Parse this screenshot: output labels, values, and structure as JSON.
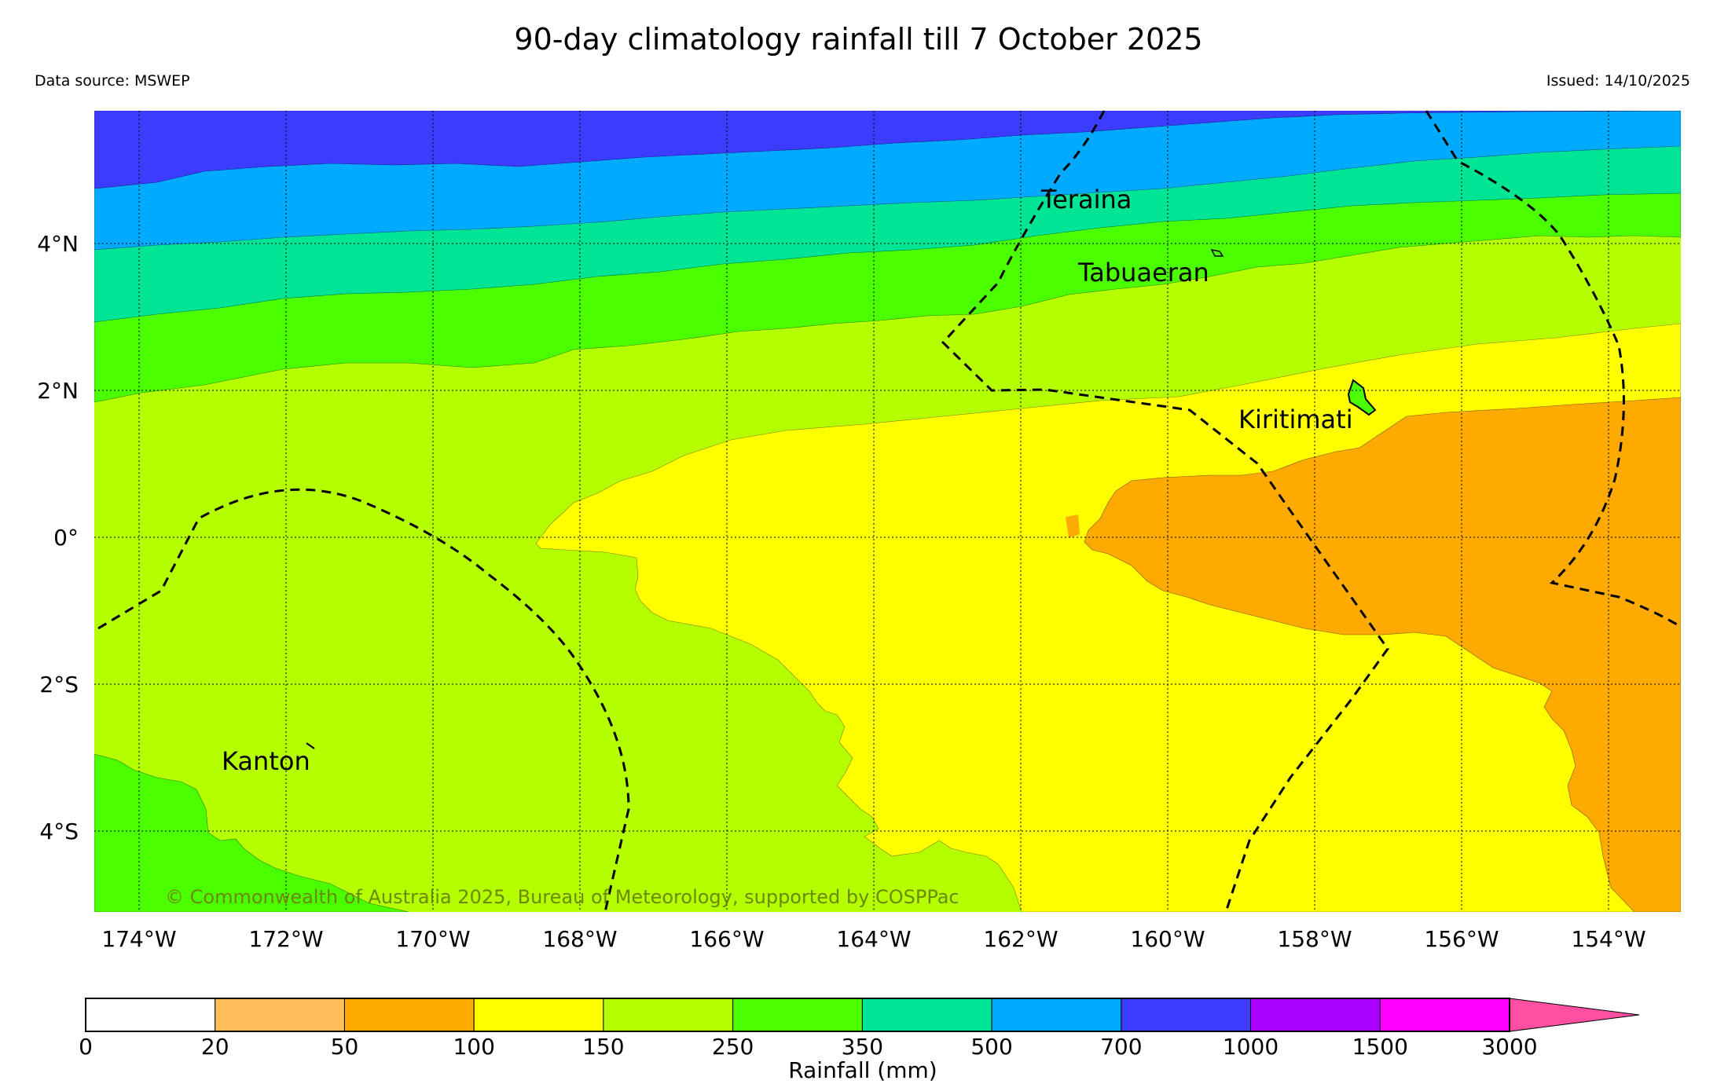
{
  "title": "90-day climatology rainfall till 7 October 2025",
  "data_source": "Data source: MSWEP",
  "issued": "Issued: 14/10/2025",
  "copyright": "© Commonwealth of Australia 2025, Bureau of Meteorology, supported by COSPPac",
  "map": {
    "lon_ticks": [
      "174°W",
      "172°W",
      "170°W",
      "168°W",
      "166°W",
      "164°W",
      "162°W",
      "160°W",
      "158°W",
      "156°W",
      "154°W"
    ],
    "lat_ticks": [
      "4°N",
      "2°N",
      "0°",
      "2°S",
      "4°S"
    ],
    "islands": [
      "Teraina",
      "Tabuaeran",
      "Kiritimati",
      "Kanton"
    ],
    "extent": {
      "lon_min": -174.6,
      "lon_max": -152.9,
      "lat_min": -5.1,
      "lat_max": 5.8
    }
  },
  "colorbar": {
    "label": "Rainfall (mm)",
    "ticks": [
      "0",
      "20",
      "50",
      "100",
      "150",
      "250",
      "350",
      "500",
      "700",
      "1000",
      "1500",
      "3000"
    ],
    "colors": [
      "#ffffff",
      "#ffbe5a",
      "#ffaa00",
      "#ffff00",
      "#b4ff00",
      "#4bff00",
      "#00e496",
      "#00aaff",
      "#3c3cff",
      "#aa00ff",
      "#ff00ff"
    ],
    "extend_color": "#ff4fa0"
  },
  "legend_colors": {
    "r20_50": "#ffbe5a",
    "r50_100": "#ffaa00",
    "r100_150": "#ffff00",
    "r150_250": "#b4ff00",
    "r250_350": "#4bff00",
    "r350_500": "#00e496",
    "r500_700": "#00aaff",
    "r700_1000": "#3c3cff"
  }
}
